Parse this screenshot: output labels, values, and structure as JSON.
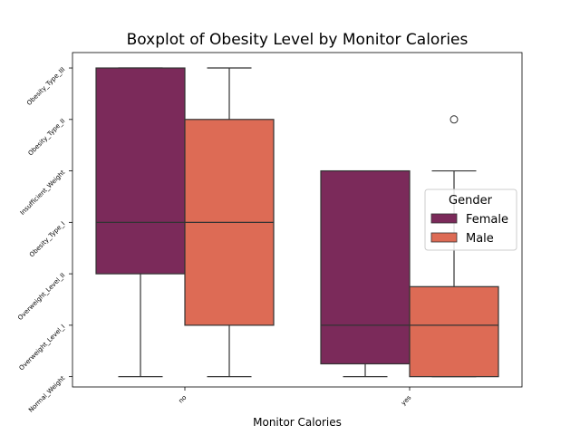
{
  "chart_data": {
    "type": "box",
    "title": "Boxplot of Obesity Level by Monitor Calories",
    "xlabel": "Monitor Calories",
    "ylabel": "",
    "categories": [
      "no",
      "yes"
    ],
    "y_categories": [
      "Normal_Weight",
      "Overweight_Level_I",
      "Overweight_Level_II",
      "Obesity_Type_I",
      "Insufficient_Weight",
      "Obesity_Type_II",
      "Obesity_Type_III"
    ],
    "y_range": [
      -0.2,
      6.3
    ],
    "legend": {
      "title": "Gender",
      "position": "center-right"
    },
    "series": [
      {
        "name": "Female",
        "color": "#7b2a5a",
        "boxes": [
          {
            "category": "no",
            "whisker_low": 0,
            "q1": 2,
            "median": 3,
            "q3": 6,
            "whisker_high": 6,
            "outliers": []
          },
          {
            "category": "yes",
            "whisker_low": 0,
            "q1": 0.25,
            "median": 1,
            "q3": 4,
            "whisker_high": 4,
            "outliers": []
          }
        ]
      },
      {
        "name": "Male",
        "color": "#dd6b55",
        "boxes": [
          {
            "category": "no",
            "whisker_low": 0,
            "q1": 1,
            "median": 3,
            "q3": 5,
            "whisker_high": 6,
            "outliers": []
          },
          {
            "category": "yes",
            "whisker_low": 0,
            "q1": 0,
            "median": 1,
            "q3": 1.75,
            "whisker_high": 4,
            "outliers": [
              5
            ]
          }
        ]
      }
    ]
  }
}
